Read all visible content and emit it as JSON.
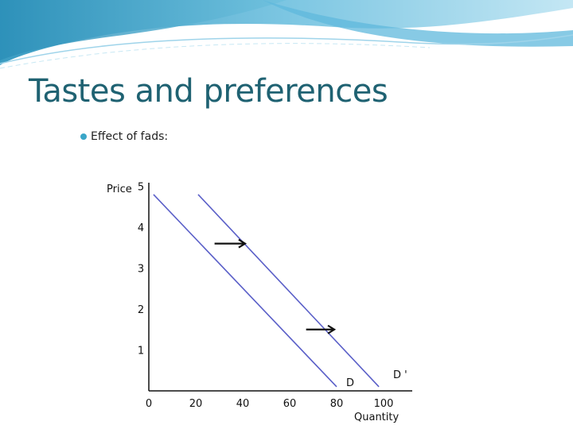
{
  "slide": {
    "title": "Tastes and preferences",
    "bullet": "Effect of fads:"
  },
  "colors": {
    "title": "#1f6272",
    "bullet": "#3aa6c8",
    "curve": "#5a5fc8",
    "banner_dark": "#2b8fb8",
    "banner_light": "#9fd4ea"
  },
  "chart_data": {
    "type": "line",
    "xlabel": "Quantity",
    "ylabel": "Price",
    "xlim": [
      0,
      110
    ],
    "ylim": [
      0,
      5.3
    ],
    "xticks": [
      0,
      20,
      40,
      60,
      80,
      100
    ],
    "yticks": [
      1,
      2,
      3,
      4,
      5
    ],
    "series": [
      {
        "name": "D",
        "points": [
          [
            2,
            4.8
          ],
          [
            80,
            0.1
          ]
        ]
      },
      {
        "name": "D '",
        "points": [
          [
            21,
            4.8
          ],
          [
            98,
            0.1
          ]
        ]
      }
    ],
    "annotations": [
      {
        "type": "arrow",
        "from": [
          28,
          3.6
        ],
        "to": [
          41,
          3.6
        ]
      },
      {
        "type": "arrow",
        "from": [
          67,
          1.5
        ],
        "to": [
          79,
          1.5
        ]
      }
    ],
    "grid": false
  }
}
